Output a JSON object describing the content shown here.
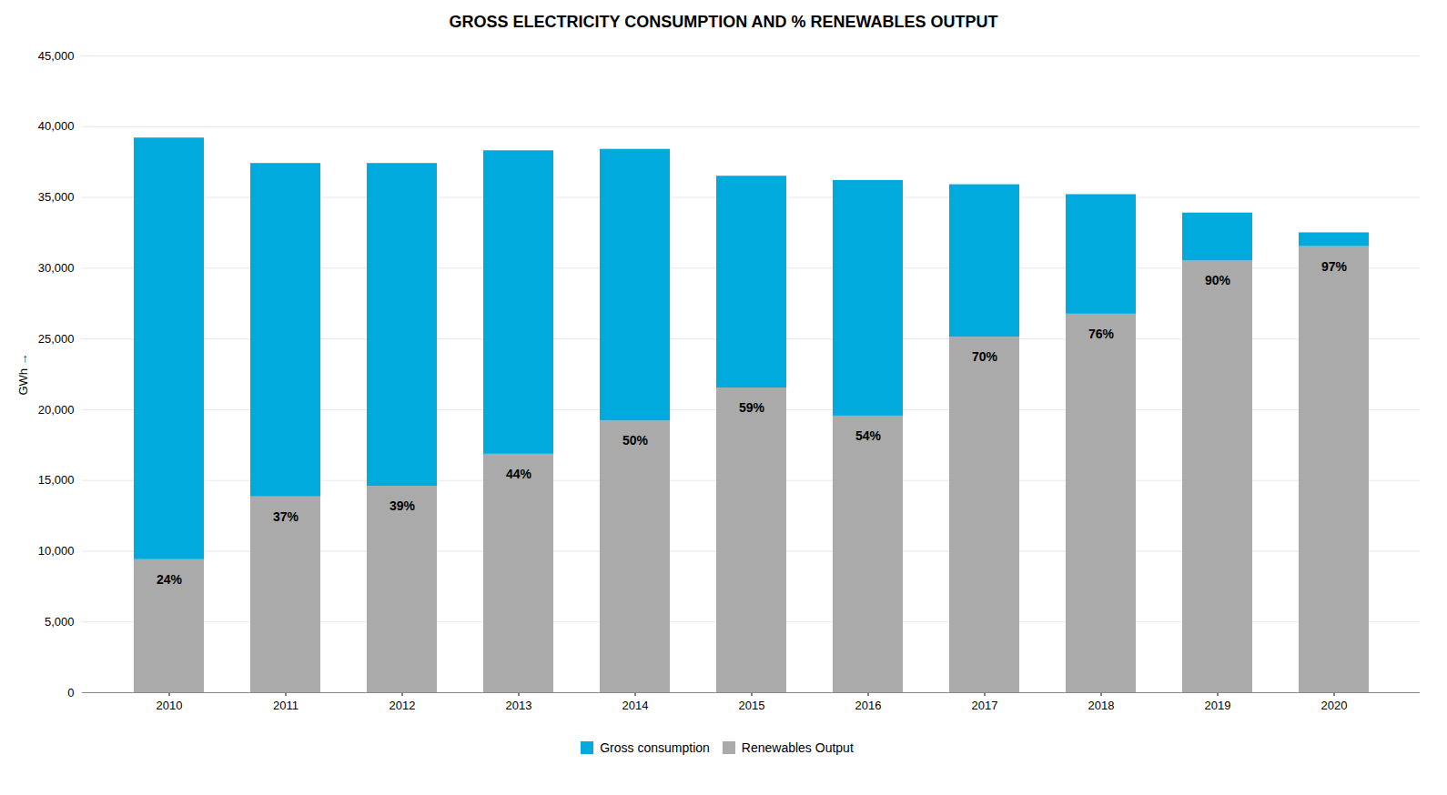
{
  "chart_data": {
    "type": "bar",
    "stacked": true,
    "title": "GROSS ELECTRICITY CONSUMPTION AND % RENEWABLES OUTPUT",
    "ylabel": "GWh",
    "categories": [
      "2010",
      "2011",
      "2012",
      "2013",
      "2014",
      "2015",
      "2016",
      "2017",
      "2018",
      "2019",
      "2020"
    ],
    "series": [
      {
        "name": "Renewables Output",
        "color": "#AAAAAA",
        "values": [
          9400,
          13838,
          14586,
          16852,
          19200,
          21535,
          19548,
          25130,
          26752,
          30510,
          31525
        ]
      },
      {
        "name": "Gross consumption",
        "color": "#00AADD",
        "values": [
          29800,
          23562,
          22814,
          21448,
          19200,
          14965,
          16652,
          10770,
          8448,
          3390,
          975
        ]
      }
    ],
    "annotations": [
      {
        "x": "2010",
        "text": "24%"
      },
      {
        "x": "2011",
        "text": "37%"
      },
      {
        "x": "2012",
        "text": "39%"
      },
      {
        "x": "2013",
        "text": "44%"
      },
      {
        "x": "2014",
        "text": "50%"
      },
      {
        "x": "2015",
        "text": "59%"
      },
      {
        "x": "2016",
        "text": "54%"
      },
      {
        "x": "2017",
        "text": "70%"
      },
      {
        "x": "2018",
        "text": "76%"
      },
      {
        "x": "2019",
        "text": "90%"
      },
      {
        "x": "2020",
        "text": "97%"
      }
    ],
    "ylim": [
      0,
      45000
    ],
    "yticks": [
      0,
      {
        "value": 5000,
        "label": "5,000"
      },
      {
        "value": 10000,
        "label": "10,000"
      },
      {
        "value": 15000,
        "label": "15,000"
      },
      {
        "value": 20000,
        "label": "20,000"
      },
      {
        "value": 25000,
        "label": "25,000"
      },
      {
        "value": 30000,
        "label": "30,000"
      },
      {
        "value": 35000,
        "label": "35,000"
      },
      {
        "value": 40000,
        "label": "40,000"
      },
      {
        "value": 45000,
        "label": "45,000"
      }
    ],
    "grid": true,
    "legend": "bottom"
  }
}
